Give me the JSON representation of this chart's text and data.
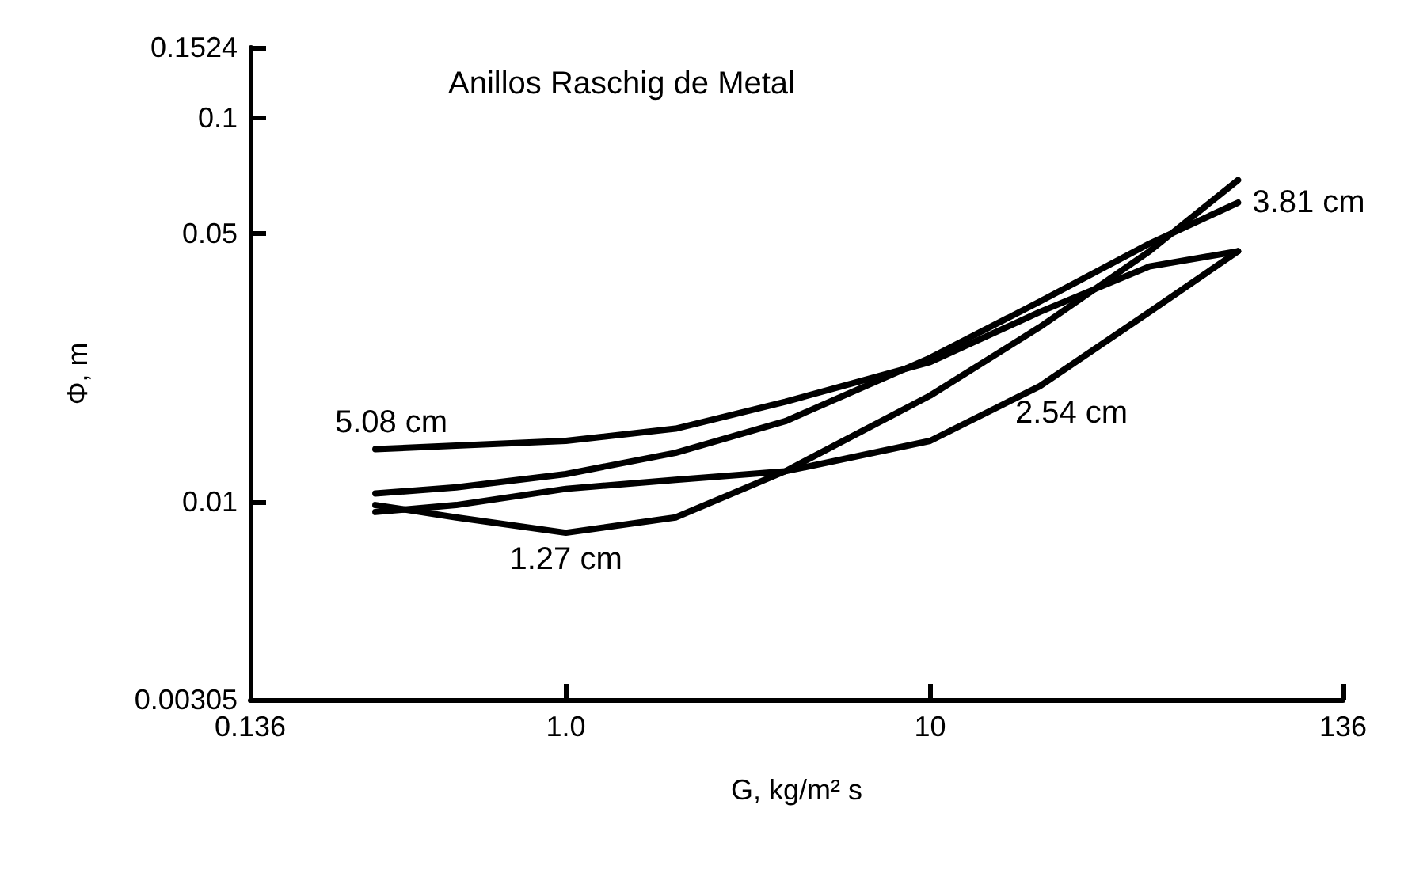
{
  "chart_data": {
    "type": "line",
    "title": "Anillos Raschig de Metal",
    "xlabel": "G, kg/m² s",
    "ylabel": "Φ, m",
    "log": "xy",
    "grid": false,
    "legend": false,
    "xlim": [
      0.136,
      136
    ],
    "xticks": [
      0.136,
      {
        "value": 1,
        "label": "1.0"
      },
      10,
      136
    ],
    "ylim": [
      0.00305,
      0.1524
    ],
    "yticks": [
      0.00305,
      0.01,
      0.05,
      0.1,
      0.1524
    ],
    "x": [
      0.3,
      0.5,
      1,
      2,
      4,
      10,
      20,
      40,
      70
    ],
    "series": [
      {
        "name": "5.08 cm",
        "color": "#000000",
        "values": [
          0.0137,
          0.014,
          0.0144,
          0.0155,
          0.0182,
          0.0231,
          0.0312,
          0.041,
          0.0449
        ]
      },
      {
        "name": "3.81 cm",
        "color": "#000000",
        "values": [
          0.0105,
          0.0109,
          0.0118,
          0.0134,
          0.0162,
          0.0237,
          0.0332,
          0.047,
          0.0601
        ]
      },
      {
        "name": "2.54 cm",
        "color": "#000000",
        "values": [
          0.0094,
          0.0098,
          0.0108,
          0.0114,
          0.012,
          0.0144,
          0.02,
          0.0312,
          0.0449
        ]
      },
      {
        "name": "1.27 cm",
        "color": "#000000",
        "values": [
          0.0098,
          0.0091,
          0.0083,
          0.0091,
          0.012,
          0.0189,
          0.0285,
          0.0449,
          0.0688
        ]
      }
    ]
  }
}
